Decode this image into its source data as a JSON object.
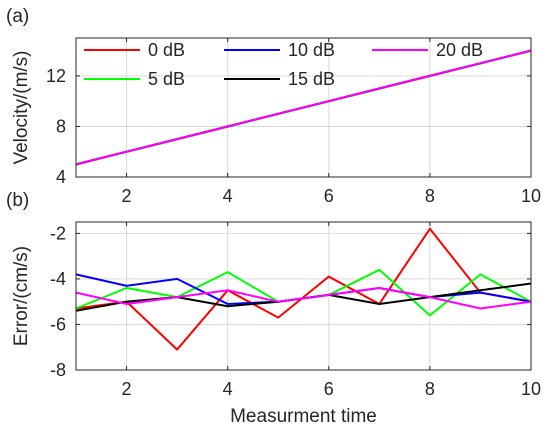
{
  "chart_data": [
    {
      "type": "line",
      "panel_label": "(a)",
      "xlabel": "",
      "ylabel": "Velocity/(m/s)",
      "xlim": [
        1,
        10
      ],
      "ylim": [
        4,
        15
      ],
      "xticks": [
        2,
        4,
        6,
        8,
        10
      ],
      "yticks": [
        4,
        8,
        12
      ],
      "grid": true,
      "legend": {
        "placement": "top",
        "columns": 3,
        "entries": [
          "0 dB",
          "10 dB",
          "20 dB",
          "5 dB",
          "15 dB"
        ]
      },
      "x": [
        1,
        2,
        3,
        4,
        5,
        6,
        7,
        8,
        9,
        10
      ],
      "series": [
        {
          "name": "0 dB",
          "color": "#ff0000",
          "values": [
            5,
            6,
            7,
            8,
            9,
            10,
            11,
            12,
            13,
            14
          ]
        },
        {
          "name": "5 dB",
          "color": "#00ff00",
          "values": [
            5,
            6,
            7,
            8,
            9,
            10,
            11,
            12,
            13,
            14
          ]
        },
        {
          "name": "10 dB",
          "color": "#0000ff",
          "values": [
            5,
            6,
            7,
            8,
            9,
            10,
            11,
            12,
            13,
            14
          ]
        },
        {
          "name": "15 dB",
          "color": "#000000",
          "values": [
            5,
            6,
            7,
            8,
            9,
            10,
            11,
            12,
            13,
            14
          ]
        },
        {
          "name": "20 dB",
          "color": "#ff00ff",
          "values": [
            5,
            6,
            7,
            8,
            9,
            10,
            11,
            12,
            13,
            14
          ]
        }
      ]
    },
    {
      "type": "line",
      "panel_label": "(b)",
      "xlabel": "Measurment time",
      "ylabel": "Error/(cm/s)",
      "xlim": [
        1,
        10
      ],
      "ylim": [
        -8,
        -1.5
      ],
      "xticks": [
        2,
        4,
        6,
        8,
        10
      ],
      "yticks": [
        -8,
        -6,
        -4,
        -2
      ],
      "grid": true,
      "x": [
        1,
        2,
        3,
        4,
        5,
        6,
        7,
        8,
        9,
        10
      ],
      "series": [
        {
          "name": "0 dB",
          "color": "#ff0000",
          "values": [
            -5.3,
            -5.0,
            -7.1,
            -4.5,
            -5.7,
            -3.9,
            -5.1,
            -1.8,
            -4.6,
            -5.0
          ]
        },
        {
          "name": "5 dB",
          "color": "#00ff00",
          "values": [
            -5.3,
            -4.4,
            -4.8,
            -3.7,
            -5.0,
            -4.7,
            -3.6,
            -5.6,
            -3.8,
            -5.0
          ]
        },
        {
          "name": "10 dB",
          "color": "#0000ff",
          "values": [
            -3.8,
            -4.3,
            -4.0,
            -5.1,
            -5.0,
            -4.7,
            -4.4,
            -4.8,
            -4.6,
            -5.0
          ]
        },
        {
          "name": "15 dB",
          "color": "#000000",
          "values": [
            -5.4,
            -5.0,
            -4.8,
            -5.2,
            -5.0,
            -4.7,
            -5.1,
            -4.8,
            -4.5,
            -4.2
          ]
        },
        {
          "name": "20 dB",
          "color": "#ff00ff",
          "values": [
            -4.6,
            -5.1,
            -4.8,
            -4.5,
            -5.0,
            -4.7,
            -4.4,
            -4.8,
            -5.3,
            -5.0
          ]
        }
      ]
    }
  ]
}
